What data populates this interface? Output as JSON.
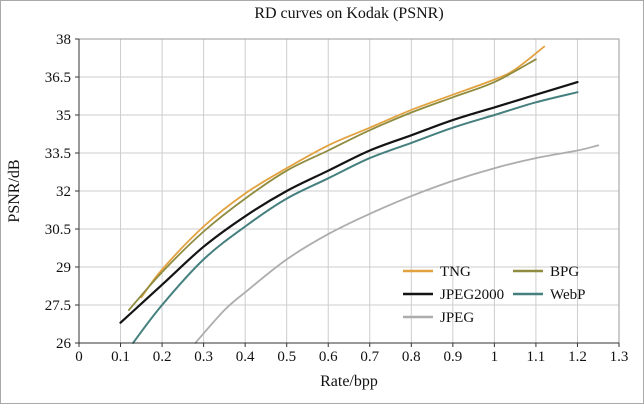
{
  "chart_data": {
    "type": "line",
    "title": "RD curves on Kodak (PSNR)",
    "xlabel": "Rate/bpp",
    "ylabel": "PSNR/dB",
    "xlim": [
      0,
      1.3
    ],
    "ylim": [
      26,
      38
    ],
    "grid": true,
    "x_tick_labels": [
      "0",
      "0.1",
      "0.2",
      "0.3",
      "0.4",
      "0.5",
      "0.6",
      "0.7",
      "0.8",
      "0.9",
      "1",
      "1.1",
      "1.2",
      "1.3"
    ],
    "y_tick_labels": [
      "26",
      "27.5",
      "29",
      "30.5",
      "32",
      "33.5",
      "35",
      "36.5",
      "38"
    ],
    "legend_position": "inside bottom-right",
    "legend_columns": [
      [
        "TNG",
        "JPEG2000",
        "JPEG"
      ],
      [
        "BPG",
        "WebP"
      ]
    ],
    "series": [
      {
        "name": "TNG",
        "color": "#E2A23F",
        "width": 1.8,
        "x": [
          0.15,
          0.2,
          0.3,
          0.4,
          0.5,
          0.6,
          0.7,
          0.8,
          0.9,
          1.0,
          1.05,
          1.12
        ],
        "y": [
          27.8,
          28.9,
          30.6,
          31.9,
          32.9,
          33.8,
          34.5,
          35.2,
          35.8,
          36.4,
          36.8,
          37.7
        ]
      },
      {
        "name": "BPG",
        "color": "#8F8C40",
        "width": 1.8,
        "x": [
          0.12,
          0.2,
          0.3,
          0.4,
          0.5,
          0.6,
          0.7,
          0.8,
          0.9,
          1.0,
          1.1
        ],
        "y": [
          27.3,
          28.8,
          30.4,
          31.7,
          32.8,
          33.6,
          34.4,
          35.1,
          35.7,
          36.3,
          37.2
        ]
      },
      {
        "name": "JPEG2000",
        "color": "#141414",
        "width": 2.2,
        "x": [
          0.1,
          0.2,
          0.3,
          0.4,
          0.5,
          0.6,
          0.7,
          0.8,
          0.9,
          1.0,
          1.1,
          1.2
        ],
        "y": [
          26.8,
          28.3,
          29.8,
          31.0,
          32.0,
          32.8,
          33.6,
          34.2,
          34.8,
          35.3,
          35.8,
          36.3
        ]
      },
      {
        "name": "WebP",
        "color": "#45807F",
        "width": 2,
        "x": [
          0.13,
          0.2,
          0.3,
          0.4,
          0.5,
          0.6,
          0.7,
          0.8,
          0.9,
          1.0,
          1.1,
          1.2
        ],
        "y": [
          26.0,
          27.5,
          29.3,
          30.6,
          31.7,
          32.5,
          33.3,
          33.9,
          34.5,
          35.0,
          35.5,
          35.9
        ]
      },
      {
        "name": "JPEG",
        "color": "#ADADAD",
        "width": 1.8,
        "x": [
          0.28,
          0.35,
          0.4,
          0.5,
          0.6,
          0.7,
          0.8,
          0.9,
          1.0,
          1.1,
          1.2,
          1.25
        ],
        "y": [
          26.0,
          27.3,
          28.0,
          29.3,
          30.3,
          31.1,
          31.8,
          32.4,
          32.9,
          33.3,
          33.6,
          33.8
        ]
      }
    ]
  }
}
